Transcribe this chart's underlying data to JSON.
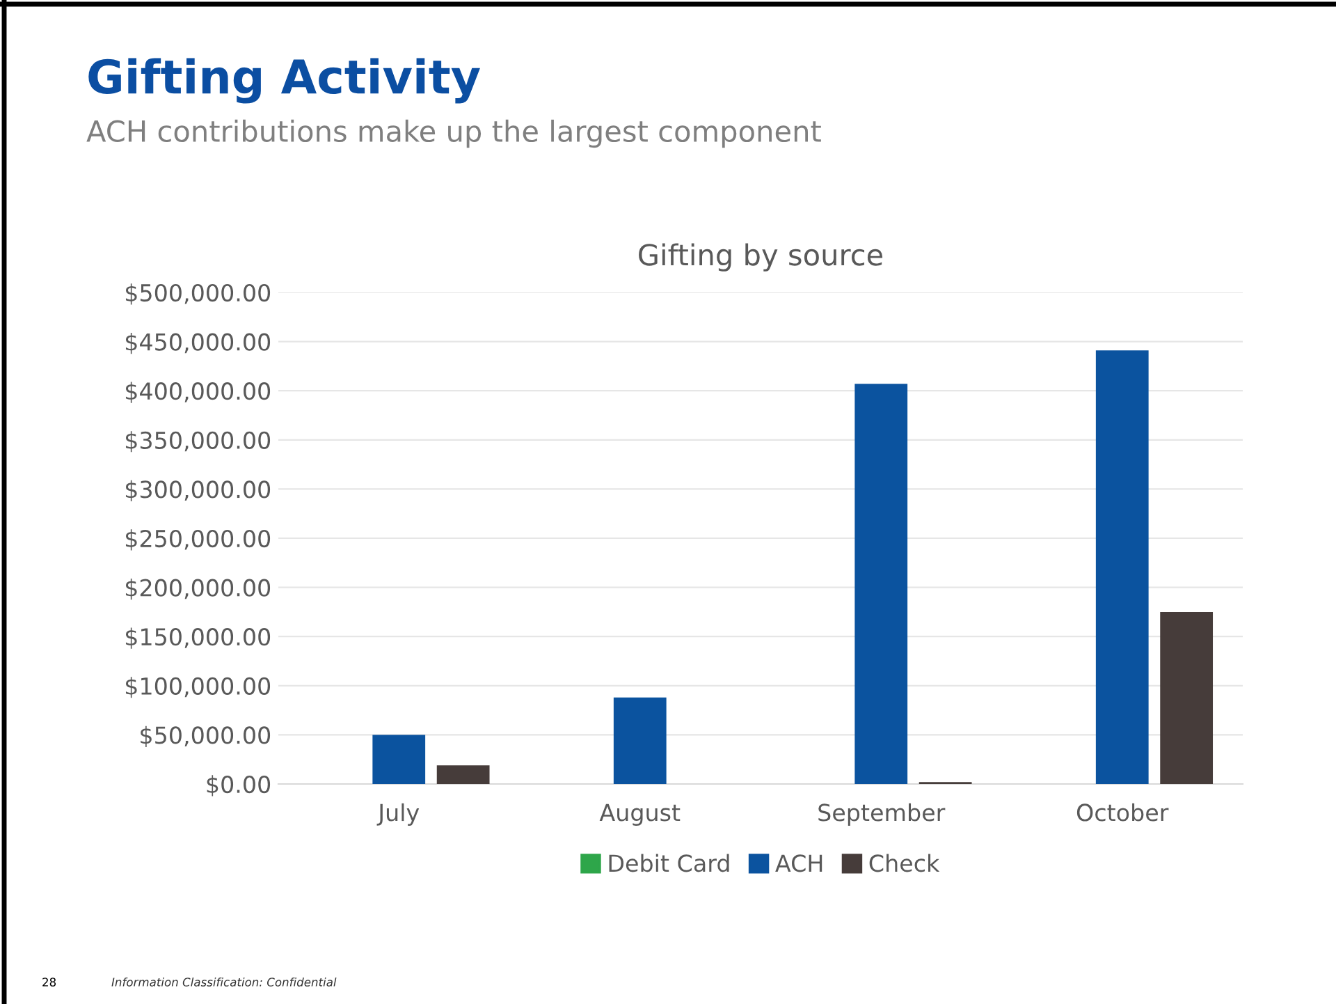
{
  "chart_data": {
    "type": "bar",
    "title": "Gifting by source",
    "subtitle": "Gifting Activity",
    "annotations": [
      "ACH contributions make up the largest component",
      "28",
      "Information Classification: Confidential"
    ],
    "categories": [
      "July",
      "August",
      "September",
      "October"
    ],
    "series": [
      {
        "name": "Debit Card",
        "color": "#2ea64a",
        "values": [
          0,
          0,
          0,
          0
        ]
      },
      {
        "name": "ACH",
        "color": "#0b539f",
        "values": [
          50000,
          88000,
          407000,
          441000
        ]
      },
      {
        "name": "Check",
        "color": "#463c3a",
        "values": [
          19000,
          0,
          2000,
          175000
        ]
      }
    ],
    "ylim": [
      0,
      500000
    ],
    "yticks": [
      {
        "value": 0,
        "label": "$0.00"
      },
      {
        "value": 50000,
        "label": "$50,000.00"
      },
      {
        "value": 100000,
        "label": "$100,000.00"
      },
      {
        "value": 150000,
        "label": "$150,000.00"
      },
      {
        "value": 200000,
        "label": "$200,000.00"
      },
      {
        "value": 250000,
        "label": "$250,000.00"
      },
      {
        "value": 300000,
        "label": "$300,000.00"
      },
      {
        "value": 350000,
        "label": "$350,000.00"
      },
      {
        "value": 400000,
        "label": "$400,000.00"
      },
      {
        "value": 450000,
        "label": "$450,000.00"
      },
      {
        "value": 500000,
        "label": "$500,000.00"
      }
    ],
    "grid": "y",
    "legend": "bottom"
  }
}
